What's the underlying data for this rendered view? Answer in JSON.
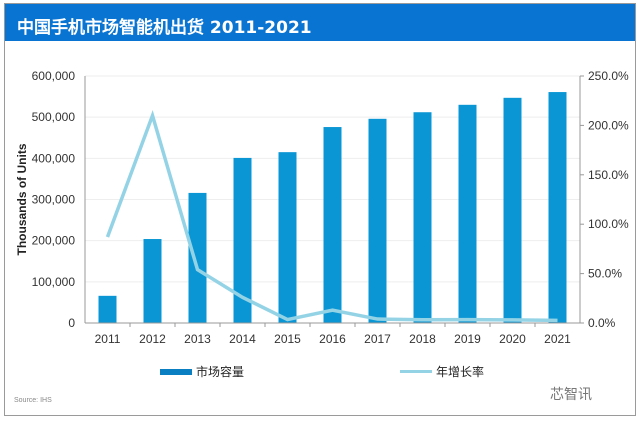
{
  "chart_data": {
    "type": "bar+line",
    "title": "中国手机市场智能机出货 2011-2021",
    "ylabel": "Thousands of Units",
    "xlabel": "",
    "categories": [
      "2011",
      "2012",
      "2013",
      "2014",
      "2015",
      "2016",
      "2017",
      "2018",
      "2019",
      "2020",
      "2021"
    ],
    "series": [
      {
        "name": "市场容量",
        "type": "bar",
        "axis": "left",
        "color": "#0a96d4",
        "values": [
          66000,
          204000,
          316000,
          401000,
          415000,
          476000,
          496000,
          512000,
          530000,
          547000,
          561000
        ]
      },
      {
        "name": "年增长率",
        "type": "line",
        "axis": "right",
        "color": "#94d3e6",
        "values": [
          87,
          210,
          54,
          26,
          3.5,
          13,
          4,
          3.3,
          3.4,
          3.2,
          2.6
        ]
      }
    ],
    "ylim": [
      0,
      600000
    ],
    "y_ticks": [
      "0",
      "100,000",
      "200,000",
      "300,000",
      "400,000",
      "500,000",
      "600,000"
    ],
    "y2lim": [
      0,
      250
    ],
    "y2_ticks": [
      "0.0%",
      "50.0%",
      "100.0%",
      "150.0%",
      "200.0%",
      "250.0%"
    ],
    "grid": true,
    "legend_position": "bottom"
  },
  "source": "Source: IHS",
  "watermark": "芯智讯",
  "colors": {
    "title_bar": "#0a74d2"
  }
}
